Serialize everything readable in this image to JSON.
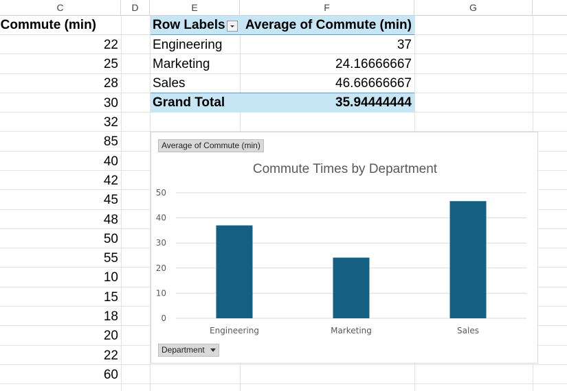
{
  "columns": [
    "C",
    "D",
    "E",
    "F",
    "G"
  ],
  "column_c": {
    "header": "Commute (min)",
    "values": [
      "22",
      "25",
      "28",
      "30",
      "32",
      "85",
      "40",
      "42",
      "45",
      "48",
      "50",
      "55",
      "10",
      "15",
      "18",
      "20",
      "22",
      "60"
    ]
  },
  "pivot": {
    "row_labels_header": "Row Labels",
    "value_header": "Average of Commute (min)",
    "rows": [
      {
        "label": "Engineering",
        "value": "37"
      },
      {
        "label": "Marketing",
        "value": "24.16666667"
      },
      {
        "label": "Sales",
        "value": "46.66666667"
      }
    ],
    "total_label": "Grand Total",
    "total_value": "35.94444444",
    "header_color": "#c6e6f5"
  },
  "chart": {
    "value_field_button": "Average of Commute (min)",
    "axis_field_button": "Department",
    "bar_color": "#155f82"
  },
  "chart_data": {
    "type": "bar",
    "title": "Commute Times by Department",
    "categories": [
      "Engineering",
      "Marketing",
      "Sales"
    ],
    "values": [
      37,
      24.16666667,
      46.66666667
    ],
    "ylim": [
      0,
      50
    ],
    "yticks": [
      0,
      10,
      20,
      30,
      40,
      50
    ],
    "grid": true,
    "xlabel": "",
    "ylabel": ""
  }
}
